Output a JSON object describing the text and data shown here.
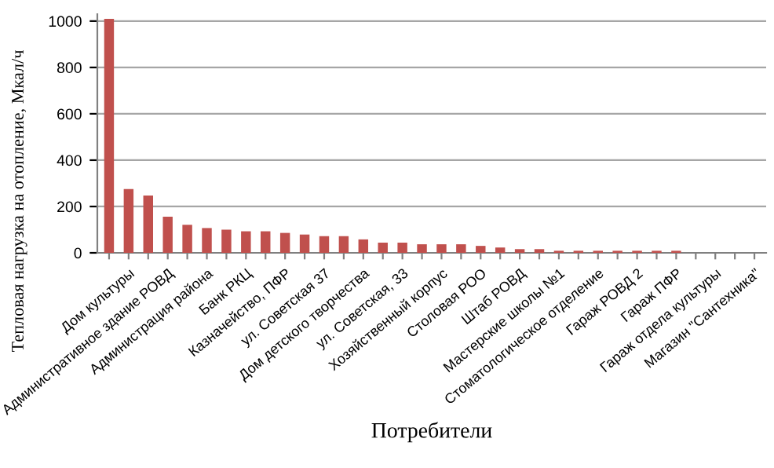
{
  "chart_data": {
    "type": "bar",
    "xlabel": "Потребители",
    "ylabel": "Тепловая нагрузка на отопление, Мкал/ч",
    "categories": [
      null,
      "Дом культуры",
      null,
      "Административное здание РОВД",
      null,
      "Администрация района",
      null,
      "Банк РКЦ",
      null,
      "Казначейство, ПФР",
      null,
      "ул. Советская 37",
      null,
      "Дом детского творчества",
      null,
      "ул. Советская, 33",
      null,
      "Хозяйственный корпус",
      null,
      "Столовая РОО",
      null,
      "Штаб РОВД",
      null,
      "Мастерские школы №1",
      null,
      "Стоматологическое отделение",
      null,
      "Гараж РОВД 2",
      null,
      "Гараж ПФР",
      null,
      "Гараж отдела культуры",
      null,
      "Магазин \"Сантехника\""
    ],
    "values": [
      1010,
      275,
      247,
      156,
      121,
      107,
      100,
      93,
      93,
      86,
      79,
      72,
      72,
      58,
      44,
      44,
      37,
      37,
      37,
      30,
      23,
      16,
      16,
      9,
      9,
      9,
      9,
      9,
      9,
      9,
      0,
      0,
      0,
      0
    ],
    "color": "#c0504d",
    "ylim": [
      0,
      1030
    ],
    "yticks": [
      0,
      200,
      400,
      600,
      800,
      1000
    ],
    "grid": "y"
  }
}
